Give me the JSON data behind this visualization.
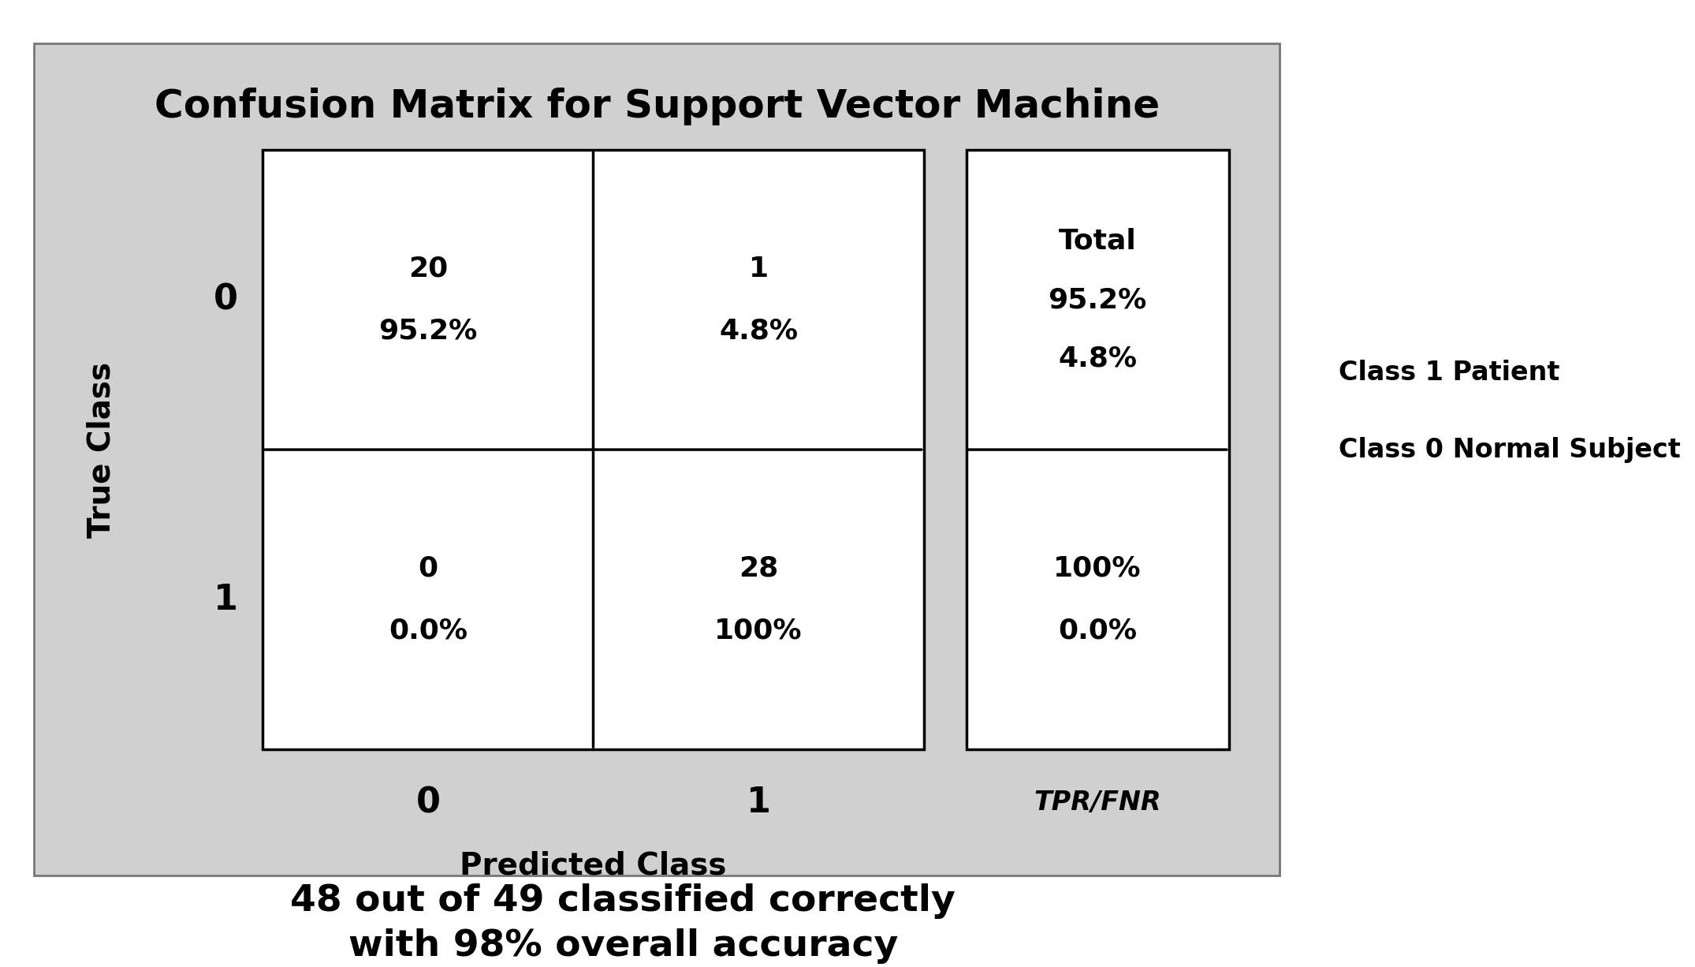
{
  "title": "Confusion Matrix for Support Vector Machine",
  "bg_color": "#d0d0d0",
  "cell_bg_color": "#ffffff",
  "matrix": [
    [
      20,
      1
    ],
    [
      0,
      28
    ]
  ],
  "matrix_pct": [
    [
      "95.2%",
      "4.8%"
    ],
    [
      "0.0%",
      "100%"
    ]
  ],
  "true_labels": [
    "0",
    "1"
  ],
  "pred_labels": [
    "0",
    "1"
  ],
  "xlabel": "Predicted Class",
  "ylabel": "True Class",
  "tpr_fnr_label": "TPR/FNR",
  "totals_row0": [
    "Total",
    "95.2%",
    "4.8%"
  ],
  "totals_row1": [
    "100%",
    "0.0%"
  ],
  "legend_line1": "Class 1 Patient",
  "legend_line2": "Class 0 Normal Subject",
  "footer_line1": "48 out of 49 classified correctly",
  "footer_line2": "with 98% overall accuracy",
  "title_fontsize": 36,
  "label_fontsize": 26,
  "cell_number_fontsize": 26,
  "cell_pct_fontsize": 26,
  "tick_fontsize": 32,
  "tpr_fontsize": 24,
  "footer_fontsize": 34,
  "legend_fontsize": 24,
  "xlabel_fontsize": 28,
  "ylabel_fontsize": 28
}
